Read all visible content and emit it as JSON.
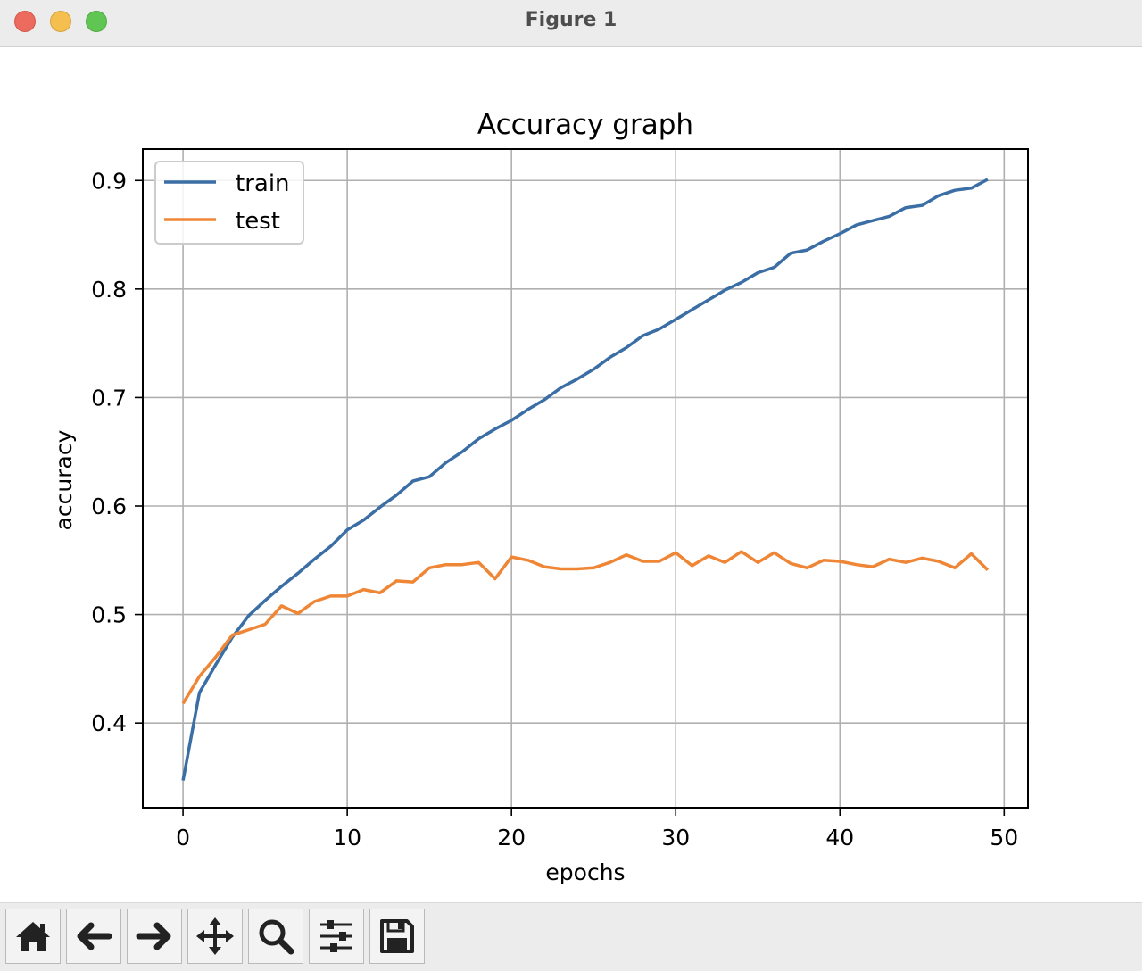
{
  "window": {
    "title": "Figure 1"
  },
  "toolbar": {
    "buttons": [
      {
        "name": "home-button",
        "icon": "home-icon"
      },
      {
        "name": "back-button",
        "icon": "arrow-left-icon"
      },
      {
        "name": "forward-button",
        "icon": "arrow-right-icon"
      },
      {
        "name": "pan-button",
        "icon": "move-icon"
      },
      {
        "name": "zoom-button",
        "icon": "magnifier-icon"
      },
      {
        "name": "configure-subplots-button",
        "icon": "sliders-icon"
      },
      {
        "name": "save-button",
        "icon": "floppy-disk-icon"
      }
    ]
  },
  "chart_data": {
    "type": "line",
    "title": "Accuracy graph",
    "xlabel": "epochs",
    "ylabel": "accuracy",
    "xlim": [
      -2.45,
      51.45
    ],
    "ylim": [
      0.322,
      0.929
    ],
    "xticks": [
      0,
      10,
      20,
      30,
      40,
      50
    ],
    "xtick_labels": [
      "0",
      "10",
      "20",
      "30",
      "40",
      "50"
    ],
    "yticks": [
      0.4,
      0.5,
      0.6,
      0.7,
      0.8,
      0.9
    ],
    "ytick_labels": [
      "0.4",
      "0.5",
      "0.6",
      "0.7",
      "0.8",
      "0.9"
    ],
    "grid": true,
    "legend_position": "upper-left",
    "x": [
      0,
      1,
      2,
      3,
      4,
      5,
      6,
      7,
      8,
      9,
      10,
      11,
      12,
      13,
      14,
      15,
      16,
      17,
      18,
      19,
      20,
      21,
      22,
      23,
      24,
      25,
      26,
      27,
      28,
      29,
      30,
      31,
      32,
      33,
      34,
      35,
      36,
      37,
      38,
      39,
      40,
      41,
      42,
      43,
      44,
      45,
      46,
      47,
      48,
      49
    ],
    "series": [
      {
        "name": "train",
        "color": "#3a6ea5",
        "values": [
          0.347,
          0.428,
          0.454,
          0.479,
          0.499,
          0.513,
          0.526,
          0.538,
          0.551,
          0.563,
          0.578,
          0.587,
          0.599,
          0.61,
          0.623,
          0.627,
          0.64,
          0.65,
          0.662,
          0.671,
          0.679,
          0.689,
          0.698,
          0.709,
          0.717,
          0.726,
          0.737,
          0.746,
          0.757,
          0.763,
          0.772,
          0.781,
          0.79,
          0.799,
          0.806,
          0.815,
          0.82,
          0.833,
          0.836,
          0.844,
          0.851,
          0.859,
          0.863,
          0.867,
          0.875,
          0.877,
          0.886,
          0.891,
          0.893,
          0.901
        ]
      },
      {
        "name": "test",
        "color": "#ef8636",
        "values": [
          0.418,
          0.443,
          0.461,
          0.481,
          0.486,
          0.491,
          0.508,
          0.501,
          0.512,
          0.517,
          0.517,
          0.523,
          0.52,
          0.531,
          0.53,
          0.543,
          0.546,
          0.546,
          0.548,
          0.533,
          0.553,
          0.55,
          0.544,
          0.542,
          0.542,
          0.543,
          0.548,
          0.555,
          0.549,
          0.549,
          0.557,
          0.545,
          0.554,
          0.548,
          0.558,
          0.548,
          0.557,
          0.547,
          0.543,
          0.55,
          0.549,
          0.546,
          0.544,
          0.551,
          0.548,
          0.552,
          0.549,
          0.543,
          0.556,
          0.541
        ]
      }
    ]
  }
}
